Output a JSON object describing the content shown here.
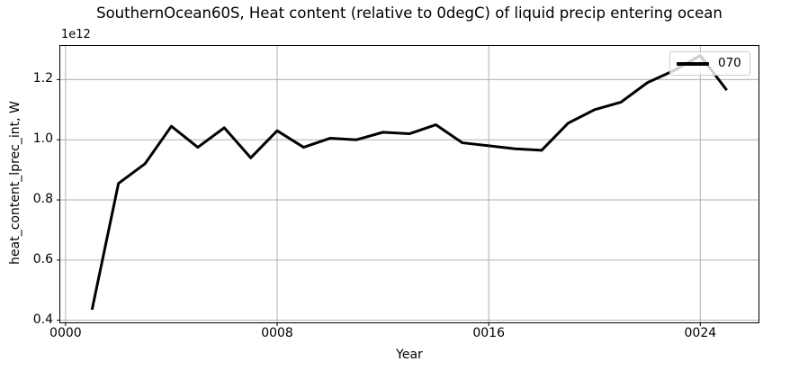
{
  "chart_data": {
    "type": "line",
    "title": "SouthernOcean60S, Heat content (relative to 0degC) of liquid precip entering ocean",
    "xlabel": "Year",
    "ylabel": "heat_content_lprec_int, W",
    "y_offset_text": "1e12",
    "y_unit": "W",
    "xlim": [
      -0.2,
      26.2
    ],
    "ylim": [
      0.393,
      1.312
    ],
    "xticks": {
      "values": [
        0,
        8,
        16,
        24
      ],
      "labels": [
        "0000",
        "0008",
        "0016",
        "0024"
      ]
    },
    "yticks": {
      "values": [
        0.4,
        0.6,
        0.8,
        1.0,
        1.2
      ],
      "labels": [
        "0.4",
        "0.6",
        "0.8",
        "1.0",
        "1.2"
      ]
    },
    "grid": true,
    "grid_color": "#b0b0b0",
    "axes_color": "#000000",
    "background_color": "#ffffff",
    "legend": {
      "position": "upper right"
    },
    "series": [
      {
        "name": "070",
        "color": "#000000",
        "line_width": 3,
        "x": [
          1,
          2,
          3,
          4,
          5,
          6,
          7,
          8,
          9,
          10,
          11,
          12,
          13,
          14,
          15,
          16,
          17,
          18,
          19,
          20,
          21,
          22,
          23,
          24,
          25
        ],
        "values": [
          0.435,
          0.855,
          0.92,
          1.045,
          0.975,
          1.04,
          0.94,
          1.03,
          0.975,
          1.005,
          1.0,
          1.025,
          1.02,
          1.05,
          0.99,
          0.98,
          0.97,
          0.965,
          1.055,
          1.1,
          1.125,
          1.19,
          1.23,
          1.28,
          1.165
        ]
      }
    ]
  }
}
